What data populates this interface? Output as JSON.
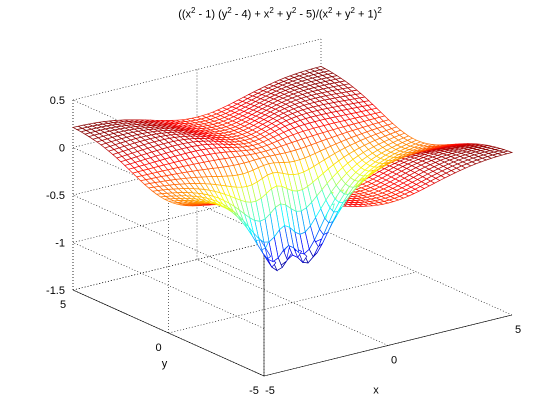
{
  "chart_data": {
    "type": "surface-mesh",
    "title_parts": {
      "p1": "((x",
      "s1": "2",
      "p2": " - 1) (y",
      "s2": "2",
      "p3": " - 4) + x",
      "s3": "2",
      "p4": " + y",
      "s4": "2",
      "p5": " - 5)/(x",
      "s5": "2",
      "p6": " + y",
      "s6": "2",
      "p7": " + 1)",
      "s7": "2"
    },
    "function": "((x^2 - 1) (y^2 - 4) + x^2 + y^2 - 5)/(x^2 + y^2 + 1)^2",
    "xlabel": "x",
    "ylabel": "y",
    "zlabel": "",
    "xlim": [
      -5,
      5
    ],
    "ylim": [
      -5,
      5
    ],
    "zlim": [
      -1.5,
      0.5
    ],
    "x_ticks": [
      {
        "value": -5,
        "label": "-5"
      },
      {
        "value": 0,
        "label": "0"
      },
      {
        "value": 5,
        "label": "5"
      }
    ],
    "y_ticks": [
      {
        "value": -5,
        "label": "-5"
      },
      {
        "value": 0,
        "label": "0"
      },
      {
        "value": 5,
        "label": "5"
      }
    ],
    "z_ticks": [
      {
        "value": 0.5,
        "label": "0.5"
      },
      {
        "value": 0,
        "label": "0"
      },
      {
        "value": -0.5,
        "label": "-0.5"
      },
      {
        "value": -1,
        "label": "-1"
      },
      {
        "value": -1.5,
        "label": "-1.5"
      }
    ],
    "grid": true,
    "grid_style": "dotted",
    "colormap": "jet",
    "mesh_samples": 49
  }
}
